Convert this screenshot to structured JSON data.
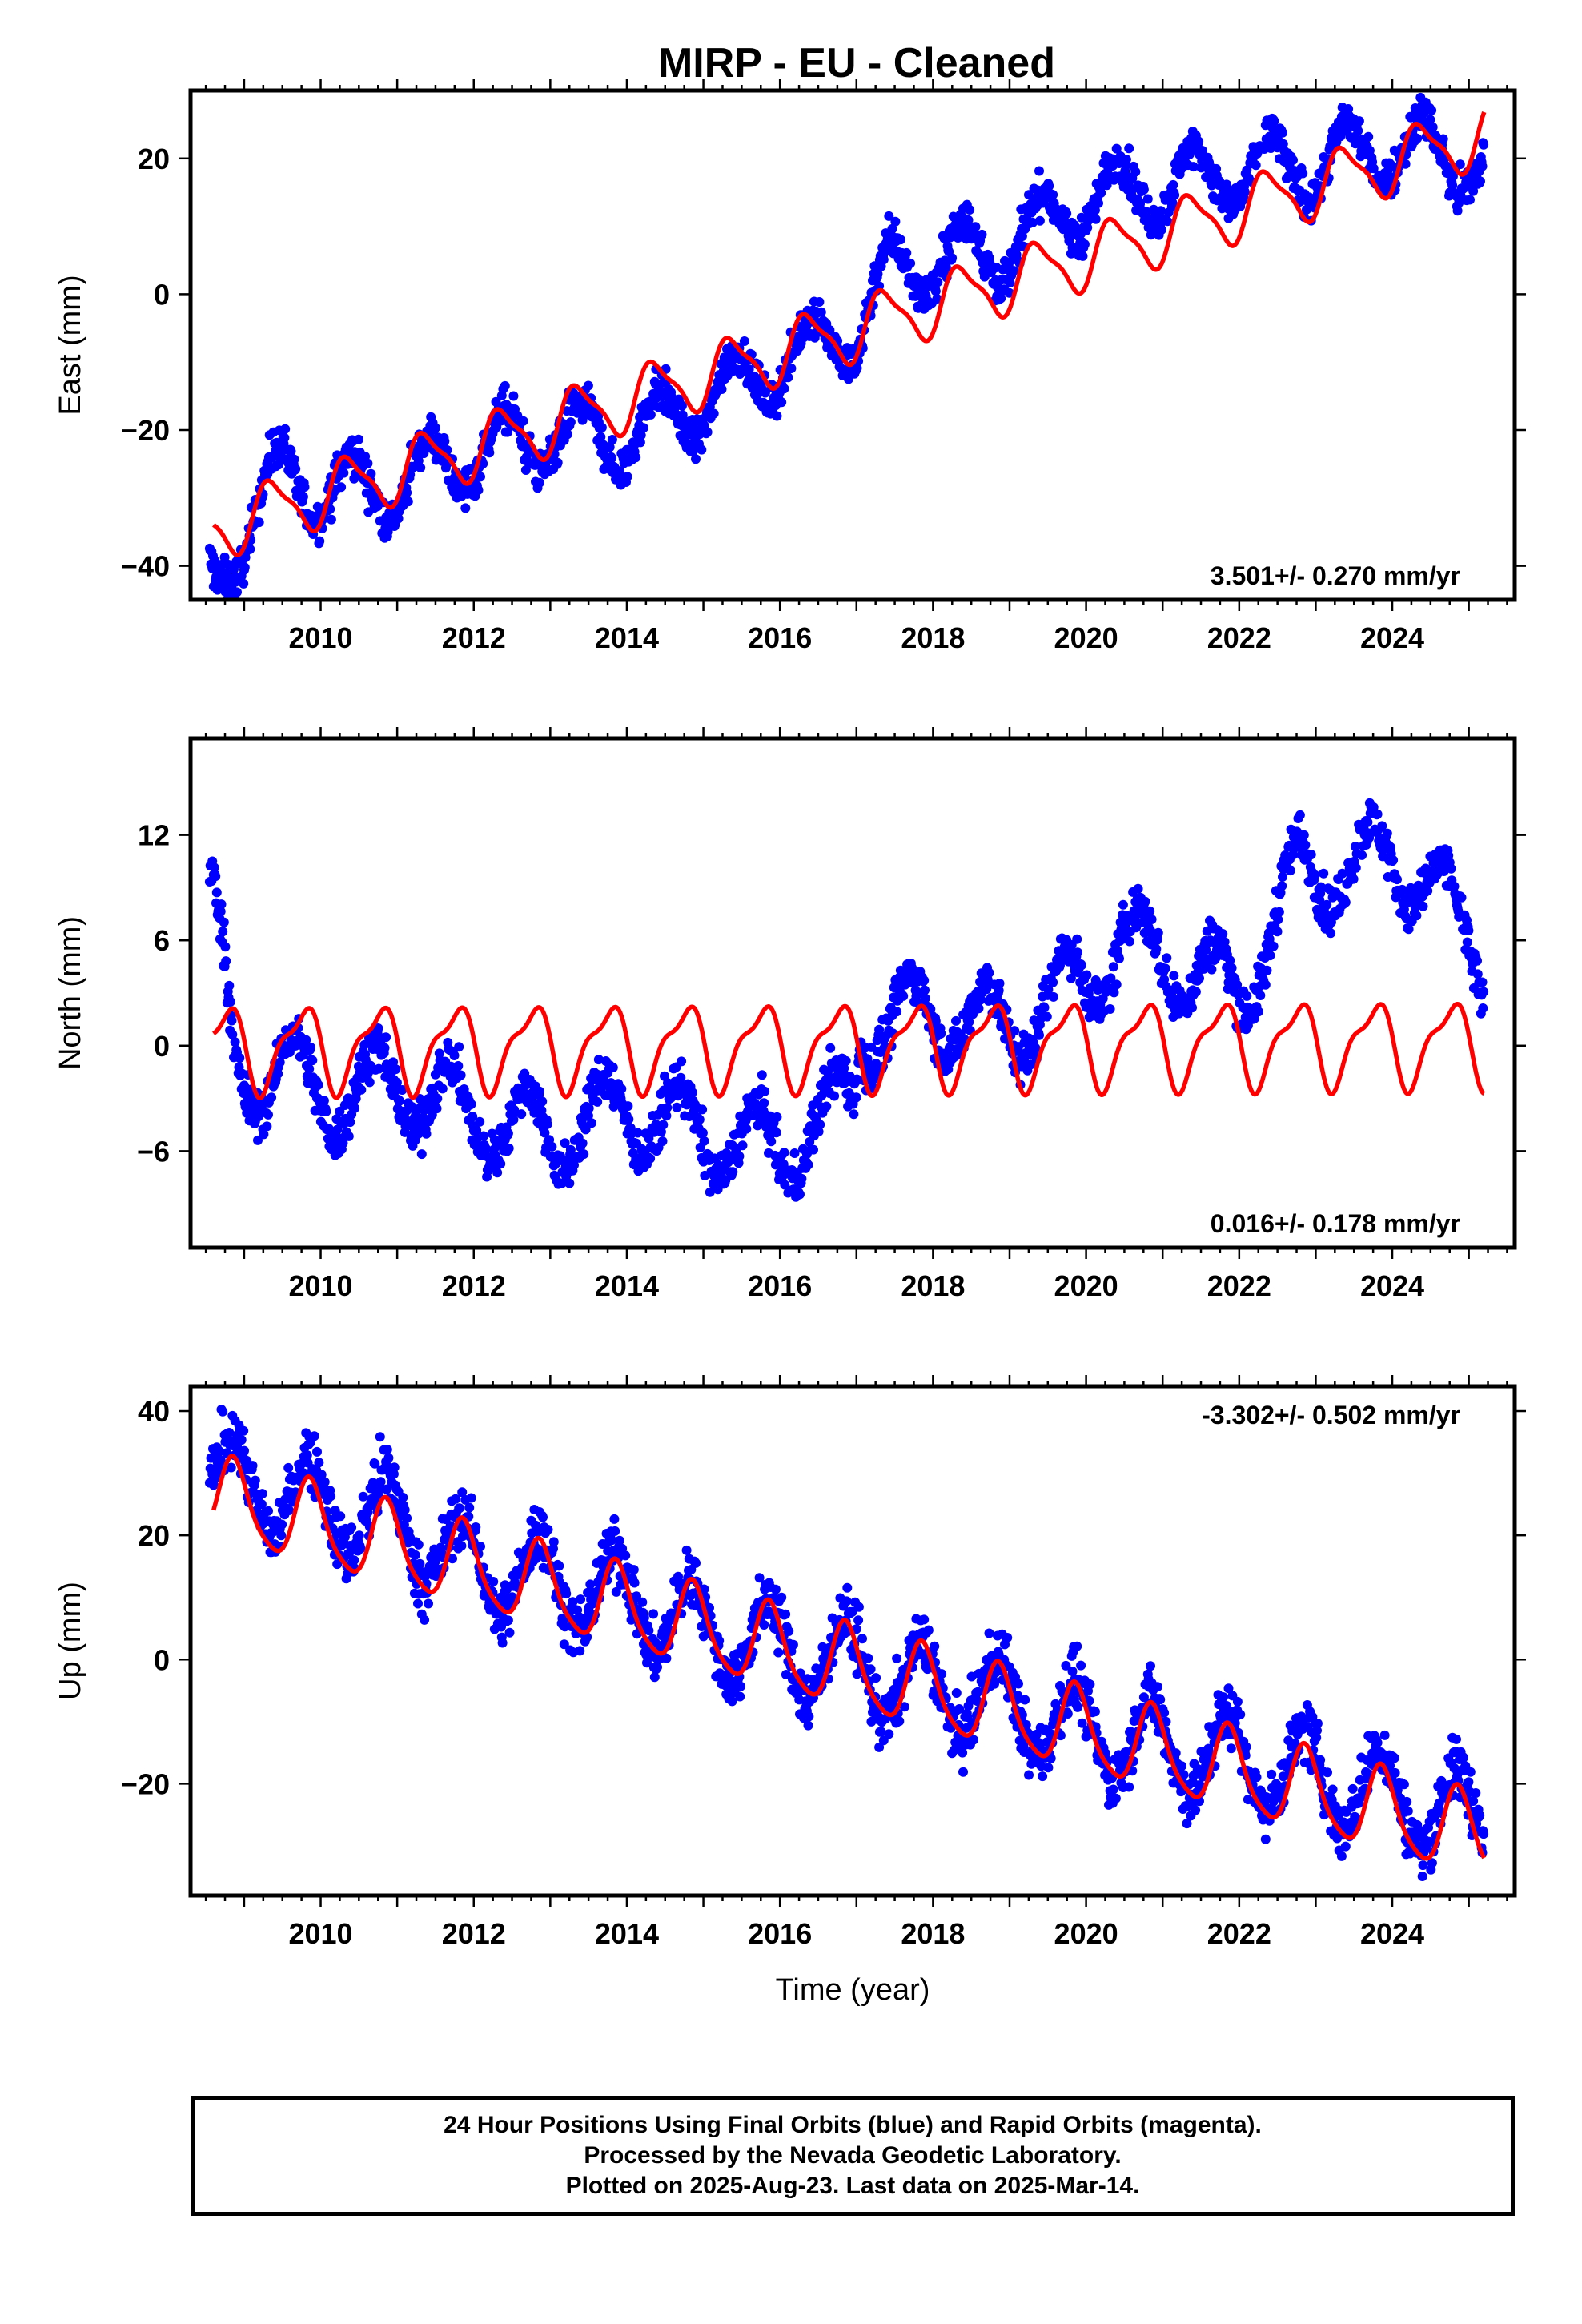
{
  "title": "MIRP  - EU - Cleaned",
  "colors": {
    "data": "#0000ff",
    "model": "#ff0000",
    "frame": "#000000"
  },
  "chart_data": [
    {
      "type": "scatter",
      "id": "east",
      "ylabel": "East (mm)",
      "xlabel": "",
      "xlim": [
        2008.3,
        2025.6
      ],
      "ylim": [
        -45,
        30
      ],
      "xticks": [
        2010,
        2012,
        2014,
        2016,
        2018,
        2020,
        2022,
        2024
      ],
      "yticks": [
        -40,
        -20,
        0,
        20
      ],
      "rate_label": "3.501+/- 0.270 mm/yr",
      "rate_pos": "bottom-right",
      "data_range": [
        2008.55,
        2025.2
      ],
      "trend_knots": [
        [
          2008.6,
          -42
        ],
        [
          2009.5,
          -26
        ],
        [
          2010.0,
          -29
        ],
        [
          2011.0,
          -28
        ],
        [
          2012.0,
          -23
        ],
        [
          2013.0,
          -21
        ],
        [
          2014.0,
          -21
        ],
        [
          2015.0,
          -16
        ],
        [
          2016.0,
          -10
        ],
        [
          2017.0,
          -5
        ],
        [
          2017.5,
          4
        ],
        [
          2018.0,
          5
        ],
        [
          2019.0,
          7
        ],
        [
          2020.0,
          14
        ],
        [
          2021.0,
          16
        ],
        [
          2022.0,
          18
        ],
        [
          2023.0,
          19
        ],
        [
          2024.0,
          22
        ],
        [
          2025.2,
          19
        ]
      ],
      "seasonal": {
        "amp": 5.0,
        "phase": 0.15,
        "amp2": 0,
        "phase2": 0
      },
      "scatter_noise": 2.2,
      "model": {
        "segments": [
          {
            "t0": 2008.6,
            "t1": 2025.2,
            "offset": -34.5,
            "rate": 3.501,
            "ref": 2008.6,
            "amp": 4.3,
            "phase": 0.12,
            "amp2": 1.2,
            "phase2": 0.1
          }
        ]
      }
    },
    {
      "type": "scatter",
      "id": "north",
      "ylabel": "North (mm)",
      "xlabel": "",
      "xlim": [
        2008.3,
        2025.6
      ],
      "ylim": [
        -11.5,
        17.5
      ],
      "xticks": [
        2010,
        2012,
        2014,
        2016,
        2018,
        2020,
        2022,
        2024
      ],
      "yticks": [
        -6,
        0,
        6,
        12
      ],
      "rate_label": "0.016+/- 0.178 mm/yr",
      "rate_pos": "bottom-right",
      "data_range": [
        2008.55,
        2025.2
      ],
      "trend_knots": [
        [
          2008.6,
          8
        ],
        [
          2008.9,
          -2
        ],
        [
          2009.5,
          -1
        ],
        [
          2010.0,
          -3
        ],
        [
          2011.0,
          -2
        ],
        [
          2012.0,
          -4
        ],
        [
          2013.0,
          -5
        ],
        [
          2014.0,
          -3.5
        ],
        [
          2015.0,
          -5
        ],
        [
          2016.0,
          -6
        ],
        [
          2016.95,
          -3
        ],
        [
          2017.05,
          1
        ],
        [
          2018.0,
          2
        ],
        [
          2019.0,
          1
        ],
        [
          2020.0,
          4
        ],
        [
          2020.5,
          6
        ],
        [
          2021.0,
          5
        ],
        [
          2022.0,
          3
        ],
        [
          2022.8,
          10
        ],
        [
          2023.5,
          10
        ],
        [
          2024.0,
          11
        ],
        [
          2024.5,
          9
        ],
        [
          2025.2,
          5
        ]
      ],
      "seasonal": {
        "amp": 2.3,
        "phase": 0.45,
        "amp2": 0,
        "phase2": 0
      },
      "scatter_noise": 1.0,
      "model": {
        "segments": [
          {
            "t0": 2008.6,
            "t1": 2025.2,
            "offset": 0.0,
            "rate": 0.016,
            "ref": 2016.9,
            "amp": 2.2,
            "phase": 0.5,
            "amp2": 0.8,
            "phase2": 0.3
          }
        ]
      }
    },
    {
      "type": "scatter",
      "id": "up",
      "ylabel": "Up (mm)",
      "xlabel": "Time (year)",
      "xlim": [
        2008.3,
        2025.6
      ],
      "ylim": [
        -38,
        44
      ],
      "xticks": [
        2010,
        2012,
        2014,
        2016,
        2018,
        2020,
        2022,
        2024
      ],
      "yticks": [
        -20,
        0,
        20,
        40
      ],
      "rate_label": "-3.302+/- 0.502 mm/yr",
      "rate_pos": "top-right",
      "data_range": [
        2008.55,
        2025.2
      ],
      "trend_knots": [
        [
          2008.6,
          30
        ],
        [
          2010.0,
          25
        ],
        [
          2011.0,
          22
        ],
        [
          2012.0,
          15
        ],
        [
          2013.0,
          13
        ],
        [
          2014.0,
          10
        ],
        [
          2015.0,
          5
        ],
        [
          2016.0,
          2
        ],
        [
          2017.0,
          -1
        ],
        [
          2018.0,
          -5
        ],
        [
          2019.0,
          -7
        ],
        [
          2020.0,
          -11
        ],
        [
          2021.0,
          -14
        ],
        [
          2022.0,
          -16
        ],
        [
          2023.0,
          -19
        ],
        [
          2024.0,
          -22
        ],
        [
          2025.2,
          -26
        ]
      ],
      "seasonal": {
        "amp": 7.0,
        "phase": 0.6,
        "amp2": 0,
        "phase2": 0
      },
      "scatter_noise": 3.5,
      "model": {
        "segments": [
          {
            "t0": 2008.6,
            "t1": 2025.2,
            "offset": 26.0,
            "rate": -3.302,
            "ref": 2008.6,
            "amp": 6.5,
            "phase": 0.62,
            "amp2": 1.2,
            "phase2": 0.2
          }
        ]
      }
    }
  ],
  "footer": {
    "line1": "24 Hour Positions Using Final Orbits (blue) and Rapid Orbits (magenta).",
    "line2": "Processed by the Nevada Geodetic Laboratory.",
    "line3": "Plotted on 2025-Aug-23. Last data on 2025-Mar-14."
  }
}
